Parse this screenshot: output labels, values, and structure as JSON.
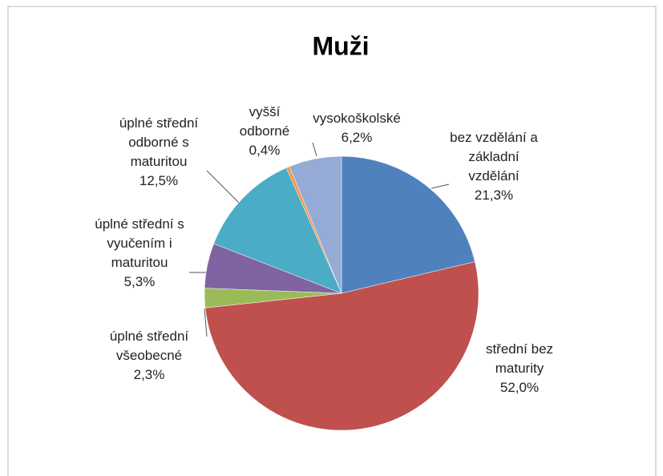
{
  "chart_data": {
    "type": "pie",
    "title": "Muži",
    "categories": [
      "bez vzdělání a základní vzdělání",
      "střední bez maturity",
      "úplné střední všeobecné",
      "úplné střední s vyučením i maturitou",
      "úplné střední odborné s maturitou",
      "vyšší odborné",
      "vysokoškolské"
    ],
    "values": [
      21.3,
      52.0,
      2.3,
      5.3,
      12.5,
      0.4,
      6.2
    ],
    "value_labels": [
      "21,3%",
      "52,0%",
      "2,3%",
      "5,3%",
      "12,5%",
      "0,4%",
      "6,2%"
    ],
    "colors": [
      "#4f81bd",
      "#c0504d",
      "#9bbb59",
      "#8064a2",
      "#4bacc6",
      "#f79646",
      "#95abd6"
    ]
  }
}
